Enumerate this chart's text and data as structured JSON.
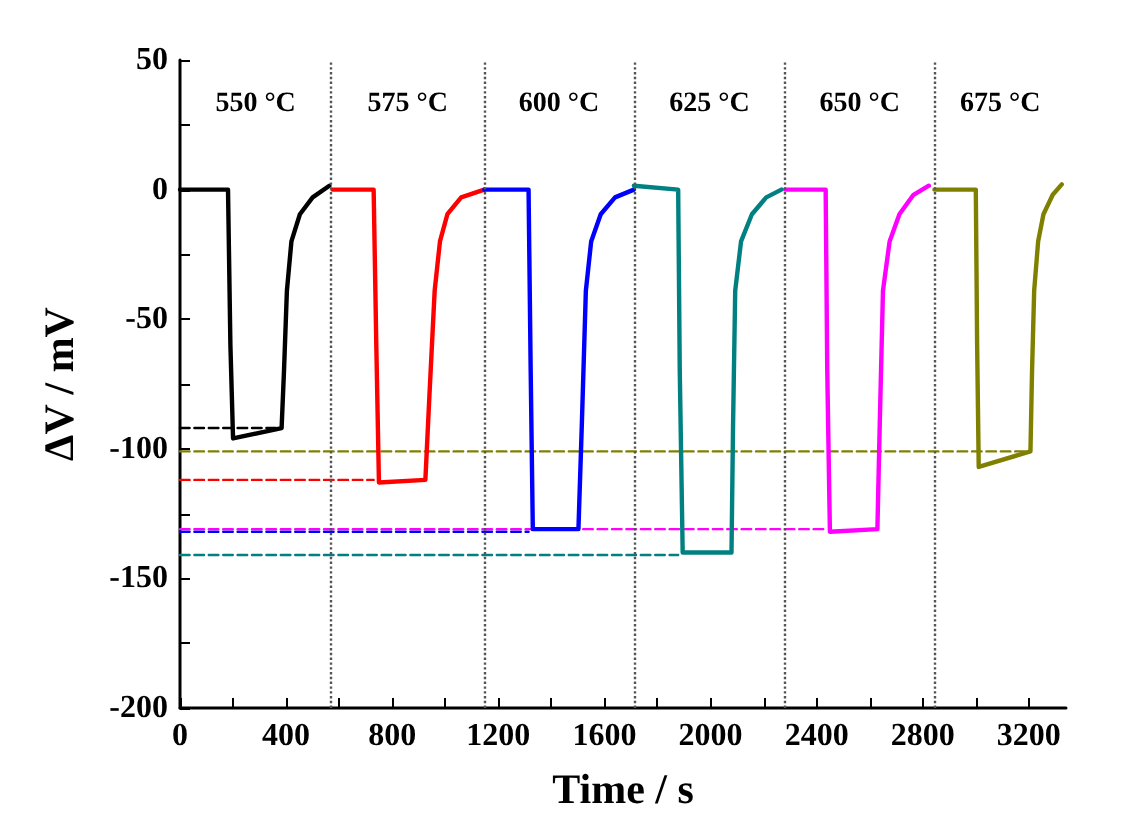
{
  "chart_data": {
    "type": "line",
    "xlabel": "Time / s",
    "ylabel": "ΔV / mV",
    "xlim": [
      0,
      3340
    ],
    "ylim": [
      -200,
      50
    ],
    "xticks": [
      0,
      {
        "value": 200,
        "label": null
      },
      400,
      {
        "value": 600,
        "label": null
      },
      800,
      {
        "value": 1000,
        "label": null
      },
      1200,
      {
        "value": 1400,
        "label": null
      },
      1600,
      {
        "value": 1800,
        "label": null
      },
      2000,
      {
        "value": 2200,
        "label": null
      },
      2400,
      {
        "value": 2600,
        "label": null
      },
      2800,
      {
        "value": 3000,
        "label": null
      },
      3200
    ],
    "yticks": [
      -200,
      {
        "value": -175,
        "label": null
      },
      -150,
      {
        "value": -125,
        "label": null
      },
      -100,
      {
        "value": -75,
        "label": null
      },
      -50,
      {
        "value": -25,
        "label": null
      },
      0,
      {
        "value": 25,
        "label": null
      },
      50
    ],
    "grid": false,
    "marker": "none",
    "series": [
      {
        "color": "#000000",
        "line_style": "solid",
        "x": [
          0,
          181,
          190,
          200,
          383,
          392,
          403,
          420,
          452,
          500,
          563
        ],
        "values": [
          0,
          0,
          -60,
          -96,
          -92,
          -70,
          -39,
          -20,
          -9.5,
          -3,
          1.5
        ]
      },
      {
        "color": "#ff0000",
        "line_style": "solid",
        "x": [
          575,
          730,
          740,
          750,
          925,
          940,
          960,
          980,
          1008,
          1060,
          1147
        ],
        "values": [
          0,
          0,
          -60,
          -113,
          -112,
          -80,
          -39,
          -20,
          -9.5,
          -3,
          0
        ]
      },
      {
        "color": "#0000ff",
        "line_style": "solid",
        "x": [
          1147,
          1314,
          1322,
          1330,
          1502,
          1515,
          1530,
          1550,
          1586,
          1640,
          1711
        ],
        "values": [
          0,
          0,
          -70,
          -131,
          -131,
          -90,
          -39,
          -20,
          -9.5,
          -3,
          0
        ]
      },
      {
        "color": "#008080",
        "line_style": "solid",
        "x": [
          1711,
          1878,
          1884,
          1895,
          2079,
          2085,
          2093,
          2115,
          2156,
          2210,
          2267
        ],
        "values": [
          1.5,
          0,
          -70,
          -140,
          -140,
          -90,
          -39,
          -20,
          -9.5,
          -3,
          0
        ]
      },
      {
        "color": "#ff00ff",
        "line_style": "solid",
        "x": [
          2281,
          2434,
          2440,
          2450,
          2629,
          2638,
          2650,
          2675,
          2712,
          2765,
          2823
        ],
        "values": [
          0,
          0,
          -70,
          -132,
          -131,
          -90,
          -39,
          -20,
          -9.5,
          -2,
          1.5
        ]
      },
      {
        "color": "#808000",
        "line_style": "solid",
        "x": [
          2844,
          3000,
          3005,
          3011,
          3206,
          3212,
          3220,
          3235,
          3255,
          3290,
          3324
        ],
        "values": [
          0,
          0,
          -60,
          -107,
          -101,
          -70,
          -39,
          -20,
          -9.5,
          -2,
          2
        ]
      },
      {
        "color": "#000000",
        "line_style": "dashed",
        "x": [
          0,
          383
        ],
        "values": [
          -92,
          -92
        ]
      },
      {
        "color": "#ff0000",
        "line_style": "dashed",
        "x": [
          0,
          730
        ],
        "values": [
          -112,
          -112
        ]
      },
      {
        "color": "#0000ff",
        "line_style": "dashed",
        "x": [
          0,
          1314
        ],
        "values": [
          -132,
          -132
        ]
      },
      {
        "color": "#008080",
        "line_style": "dashed",
        "x": [
          0,
          1878
        ],
        "values": [
          -141,
          -141
        ]
      },
      {
        "color": "#ff00ff",
        "line_style": "dashed",
        "x": [
          0,
          2434
        ],
        "values": [
          -131,
          -131
        ]
      },
      {
        "color": "#808000",
        "line_style": "dashed",
        "x": [
          0,
          3206
        ],
        "values": [
          -101,
          -101
        ]
      }
    ],
    "ref_lines": [
      {
        "axis": "x",
        "value": 570,
        "color": "#555555",
        "line_style": "dotted"
      },
      {
        "axis": "x",
        "value": 1147,
        "color": "#555555",
        "line_style": "dotted"
      },
      {
        "axis": "x",
        "value": 1711,
        "color": "#555555",
        "line_style": "dotted"
      },
      {
        "axis": "x",
        "value": 2281,
        "color": "#555555",
        "line_style": "dotted"
      },
      {
        "axis": "x",
        "value": 2844,
        "color": "#555555",
        "line_style": "dotted"
      }
    ],
    "annotations": [
      "550 °C",
      "575 °C",
      "600 °C",
      "625 °C",
      "650 °C",
      "675 °C"
    ]
  }
}
